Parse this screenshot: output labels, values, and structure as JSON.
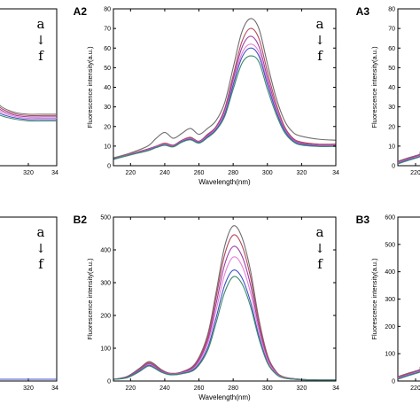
{
  "colors": {
    "a": "#6e6e6e",
    "b": "#b5475c",
    "c": "#9c3fa6",
    "d": "#e87fd8",
    "e": "#3f52c4",
    "f": "#3a8a6a",
    "axis": "#000000"
  },
  "chart_data": [
    {
      "panel": "left-top (cropped)",
      "type": "line",
      "title": "",
      "xlabel": "",
      "ylabel": "",
      "xlim": [
        210,
        340
      ],
      "visible_x_ticks": [
        "320",
        "34"
      ],
      "arrow_text": {
        "top": "a",
        "arrow": "↓",
        "bottom": "f"
      },
      "series": [
        {
          "name": "a",
          "x": [
            280,
            292,
            300,
            310,
            320,
            330,
            340
          ],
          "y": [
            0.95,
            0.75,
            0.62,
            0.55,
            0.53,
            0.53,
            0.53
          ]
        },
        {
          "name": "f",
          "x": [
            280,
            292,
            300,
            310,
            320,
            330,
            340
          ],
          "y": [
            0.7,
            0.58,
            0.52,
            0.48,
            0.46,
            0.46,
            0.46
          ]
        }
      ]
    },
    {
      "panel": "A2",
      "panel_label": "A2",
      "type": "line",
      "xlabel": "Wavelength(nm)",
      "ylabel": "Fluorescence intensity(a.u.)",
      "xlim": [
        210,
        340
      ],
      "ylim": [
        0,
        80
      ],
      "x_ticks": [
        "220",
        "240",
        "260",
        "280",
        "300",
        "320",
        "34"
      ],
      "y_ticks": [
        "0",
        "10",
        "20",
        "30",
        "40",
        "50",
        "60",
        "70",
        "80"
      ],
      "arrow_text": {
        "top": "a",
        "arrow": "↓",
        "bottom": "f"
      },
      "series": [
        {
          "name": "a",
          "x": [
            210,
            220,
            230,
            235,
            240,
            245,
            250,
            255,
            260,
            265,
            270,
            275,
            280,
            285,
            290,
            295,
            300,
            305,
            310,
            315,
            320,
            330,
            340
          ],
          "y": [
            4,
            6.5,
            10,
            14,
            17,
            14,
            16.5,
            19,
            16,
            19,
            23,
            32,
            50,
            68,
            75,
            70,
            52,
            35,
            23,
            17,
            15,
            13.5,
            13
          ]
        },
        {
          "name": "b",
          "x": [
            210,
            220,
            230,
            235,
            240,
            245,
            250,
            255,
            260,
            265,
            270,
            275,
            280,
            285,
            290,
            295,
            300,
            305,
            310,
            315,
            320,
            330,
            340
          ],
          "y": [
            3.5,
            6,
            8.5,
            10,
            11.5,
            10.5,
            13,
            14.5,
            12.5,
            16,
            20,
            29,
            46,
            63,
            70,
            65,
            48,
            32,
            20,
            14,
            12,
            11,
            11
          ]
        },
        {
          "name": "c",
          "x": [
            210,
            220,
            230,
            235,
            240,
            245,
            250,
            255,
            260,
            265,
            270,
            275,
            280,
            285,
            290,
            295,
            300,
            305,
            310,
            315,
            320,
            330,
            340
          ],
          "y": [
            3.5,
            5.8,
            8.2,
            9.8,
            11,
            10.2,
            12.7,
            14,
            12.2,
            15.5,
            19.5,
            28,
            44,
            60,
            66,
            61,
            45,
            30,
            19,
            13.5,
            11.5,
            10.5,
            10.5
          ]
        },
        {
          "name": "d",
          "x": [
            210,
            220,
            230,
            235,
            240,
            245,
            250,
            255,
            260,
            265,
            270,
            275,
            280,
            285,
            290,
            295,
            300,
            305,
            310,
            315,
            320,
            330,
            340
          ],
          "y": [
            3.4,
            5.7,
            8,
            9.6,
            10.8,
            10,
            12.5,
            13.7,
            12,
            15,
            19,
            27,
            42,
            57,
            62,
            58,
            43,
            29,
            18.5,
            13,
            11,
            10.2,
            10.2
          ]
        },
        {
          "name": "e",
          "x": [
            210,
            220,
            230,
            235,
            240,
            245,
            250,
            255,
            260,
            265,
            270,
            275,
            280,
            285,
            290,
            295,
            300,
            305,
            310,
            315,
            320,
            330,
            340
          ],
          "y": [
            3.3,
            5.6,
            7.8,
            9.4,
            10.6,
            9.8,
            12.3,
            13.5,
            11.8,
            14.7,
            18.5,
            26,
            41,
            55,
            60,
            56,
            41.5,
            28,
            18,
            12.7,
            10.8,
            10,
            10
          ]
        },
        {
          "name": "f",
          "x": [
            210,
            220,
            230,
            235,
            240,
            245,
            250,
            255,
            260,
            265,
            270,
            275,
            280,
            285,
            290,
            295,
            300,
            305,
            310,
            315,
            320,
            330,
            340
          ],
          "y": [
            3.2,
            5.5,
            7.6,
            9.2,
            10.4,
            9.6,
            12,
            13.2,
            11.5,
            14.3,
            18,
            25,
            39,
            52,
            56,
            53,
            39,
            26.5,
            17,
            12.3,
            10.5,
            9.8,
            9.8
          ]
        }
      ]
    },
    {
      "panel": "A3 (cropped)",
      "panel_label": "A3",
      "type": "line",
      "ylabel": "Fluorescence intensity(a.u.)",
      "visible_y_ticks": [
        "0",
        "10",
        "20",
        "30",
        "40",
        "50",
        "60",
        "70",
        "80"
      ],
      "visible_x_ticks": [
        "220",
        "2"
      ],
      "series": []
    },
    {
      "panel": "left-bottom (cropped)",
      "type": "line",
      "visible_x_ticks": [
        "320",
        "34"
      ],
      "arrow_text": {
        "top": "a",
        "arrow": "↓",
        "bottom": "f"
      },
      "series": [
        {
          "name": "a",
          "x": [
            300,
            340
          ],
          "y": [
            0.02,
            0.02
          ]
        }
      ]
    },
    {
      "panel": "B2",
      "panel_label": "B2",
      "type": "line",
      "xlabel": "Wavelength(nm)",
      "ylabel": "Fluorescence intensity(a.u.)",
      "xlim": [
        210,
        340
      ],
      "ylim": [
        0,
        500
      ],
      "x_ticks": [
        "220",
        "240",
        "260",
        "280",
        "300",
        "320",
        "34"
      ],
      "y_ticks": [
        "0",
        "100",
        "200",
        "300",
        "400",
        "500"
      ],
      "arrow_text": {
        "top": "a",
        "arrow": "↓",
        "bottom": "f"
      },
      "series": [
        {
          "name": "a",
          "x": [
            210,
            218,
            225,
            230,
            233,
            238,
            243,
            250,
            258,
            265,
            270,
            275,
            280,
            285,
            290,
            295,
            300,
            305,
            310,
            320,
            330,
            340
          ],
          "y": [
            5,
            14,
            38,
            58,
            55,
            35,
            24,
            28,
            55,
            140,
            270,
            410,
            473,
            440,
            340,
            190,
            80,
            30,
            12,
            5,
            3,
            3
          ]
        },
        {
          "name": "b",
          "x": [
            210,
            218,
            225,
            230,
            233,
            238,
            243,
            250,
            258,
            265,
            270,
            275,
            280,
            285,
            290,
            295,
            300,
            305,
            310,
            320,
            330,
            340
          ],
          "y": [
            5,
            13,
            35,
            55,
            52,
            33,
            23,
            27,
            52,
            132,
            255,
            385,
            445,
            415,
            320,
            180,
            76,
            28,
            11,
            5,
            3,
            3
          ]
        },
        {
          "name": "c",
          "x": [
            210,
            218,
            225,
            230,
            233,
            238,
            243,
            250,
            258,
            265,
            270,
            275,
            280,
            285,
            290,
            295,
            300,
            305,
            310,
            320,
            330,
            340
          ],
          "y": [
            5,
            12,
            33,
            52,
            49,
            31,
            22,
            26,
            48,
            122,
            235,
            355,
            410,
            383,
            296,
            166,
            70,
            26,
            10,
            5,
            3,
            3
          ]
        },
        {
          "name": "d",
          "x": [
            210,
            218,
            225,
            230,
            233,
            238,
            243,
            250,
            258,
            265,
            270,
            275,
            280,
            285,
            290,
            295,
            300,
            305,
            310,
            320,
            330,
            340
          ],
          "y": [
            5,
            11,
            31,
            49,
            46,
            29,
            21,
            24,
            44,
            112,
            215,
            325,
            378,
            353,
            272,
            153,
            65,
            24,
            10,
            5,
            3,
            3
          ]
        },
        {
          "name": "e",
          "x": [
            210,
            218,
            225,
            230,
            233,
            238,
            243,
            250,
            258,
            265,
            270,
            275,
            280,
            285,
            290,
            295,
            300,
            305,
            310,
            320,
            330,
            340
          ],
          "y": [
            5,
            11,
            30,
            47,
            44,
            28,
            20,
            23,
            40,
            100,
            192,
            292,
            338,
            316,
            244,
            138,
            58,
            22,
            9,
            4,
            3,
            3
          ]
        },
        {
          "name": "f",
          "x": [
            210,
            218,
            225,
            230,
            233,
            238,
            243,
            250,
            258,
            265,
            270,
            275,
            280,
            285,
            290,
            295,
            300,
            305,
            310,
            320,
            330,
            340
          ],
          "y": [
            5,
            10,
            28,
            45,
            42,
            27,
            19,
            22,
            37,
            92,
            177,
            270,
            318,
            298,
            230,
            130,
            55,
            21,
            9,
            4,
            3,
            3
          ]
        }
      ]
    },
    {
      "panel": "B3 (cropped)",
      "panel_label": "B3",
      "type": "line",
      "ylabel": "Fluorescence intensity(a.u.)",
      "visible_y_ticks": [
        "0",
        "100",
        "200",
        "300",
        "400",
        "500",
        "600"
      ],
      "visible_x_ticks": [
        "220",
        "2"
      ],
      "series": []
    }
  ]
}
